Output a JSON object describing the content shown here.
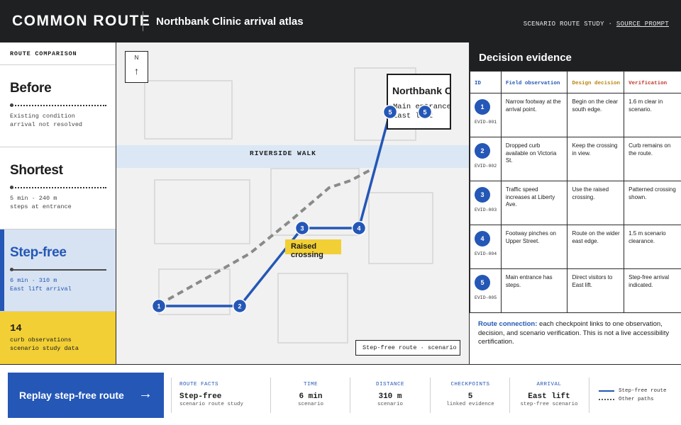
{
  "header": {
    "brand": "COMMON ROUTE",
    "title": "Northbank Clinic arrival atlas",
    "study_label": "SCENARIO ROUTE STUDY ·",
    "source_link": "SOURCE PROMPT"
  },
  "sidebar": {
    "heading": "ROUTE COMPARISON",
    "routes": [
      {
        "name": "Before",
        "line1": "Existing condition",
        "line2": "arrival not resolved"
      },
      {
        "name": "Shortest",
        "line1": "5 min · 240 m",
        "line2": "steps at entrance"
      },
      {
        "name": "Step-free",
        "line1": "6 min · 310 m",
        "line2": "East lift arrival"
      }
    ],
    "observations": {
      "count": "14",
      "line1": "curb observations",
      "line2": "scenario study data"
    }
  },
  "map": {
    "north_label": "N",
    "north_arrow": "↑",
    "street": "RIVERSIDE WALK",
    "clinic_name": "Northbank Clinic",
    "clinic_line1": "Main entrance",
    "clinic_line2": "East lift",
    "crossing_label": "Raised crossing",
    "legend": "Step-free route · scenario",
    "checkpoints": [
      "1",
      "2",
      "3",
      "4",
      "5",
      "5"
    ]
  },
  "evidence": {
    "title": "Decision evidence",
    "columns": [
      "ID",
      "Field observation",
      "Design decision",
      "Verification"
    ],
    "column_colors": [
      "#2457b6",
      "#2457b6",
      "#b8860b",
      "#c0392b"
    ],
    "rows": [
      {
        "num": "1",
        "code": "EVID-001",
        "observation": "Narrow footway at the arrival point.",
        "decision": "Begin on the clear south edge.",
        "verification": "1.6 m clear in scenario."
      },
      {
        "num": "2",
        "code": "EVID-002",
        "observation": "Dropped curb available on Victoria St.",
        "decision": "Keep the crossing in view.",
        "verification": "Curb remains on the route."
      },
      {
        "num": "3",
        "code": "EVID-003",
        "observation": "Traffic speed increases at Liberty Ave.",
        "decision": "Use the raised crossing.",
        "verification": "Patterned crossing shown."
      },
      {
        "num": "4",
        "code": "EVID-004",
        "observation": "Footway pinches on Upper Street.",
        "decision": "Route on the wider east edge.",
        "verification": "1.5 m scenario clearance."
      },
      {
        "num": "5",
        "code": "EVID-005",
        "observation": "Main entrance has steps.",
        "decision": "Direct visitors to East lift.",
        "verification": "Step-free arrival indicated."
      }
    ],
    "connection_label": "Route connection:",
    "connection_text": " each checkpoint links to one observation, decision, and scenario verification. This is not a live accessibility certification."
  },
  "footer": {
    "replay_label": "Replay step-free route",
    "replay_arrow": "→",
    "facts": [
      {
        "label": "ROUTE FACTS",
        "value": "Step-free",
        "sub": "scenario route study"
      },
      {
        "label": "TIME",
        "value": "6 min",
        "sub": "scenario"
      },
      {
        "label": "DISTANCE",
        "value": "310 m",
        "sub": "scenario"
      },
      {
        "label": "CHECKPOINTS",
        "value": "5",
        "sub": "linked evidence"
      },
      {
        "label": "ARRIVAL",
        "value": "East lift",
        "sub": "step-free scenario"
      }
    ],
    "legend": [
      "Step-free route",
      "Other paths"
    ]
  },
  "colors": {
    "accent": "#2457b6",
    "highlight": "#f2cf35",
    "dark": "#1e2022"
  }
}
